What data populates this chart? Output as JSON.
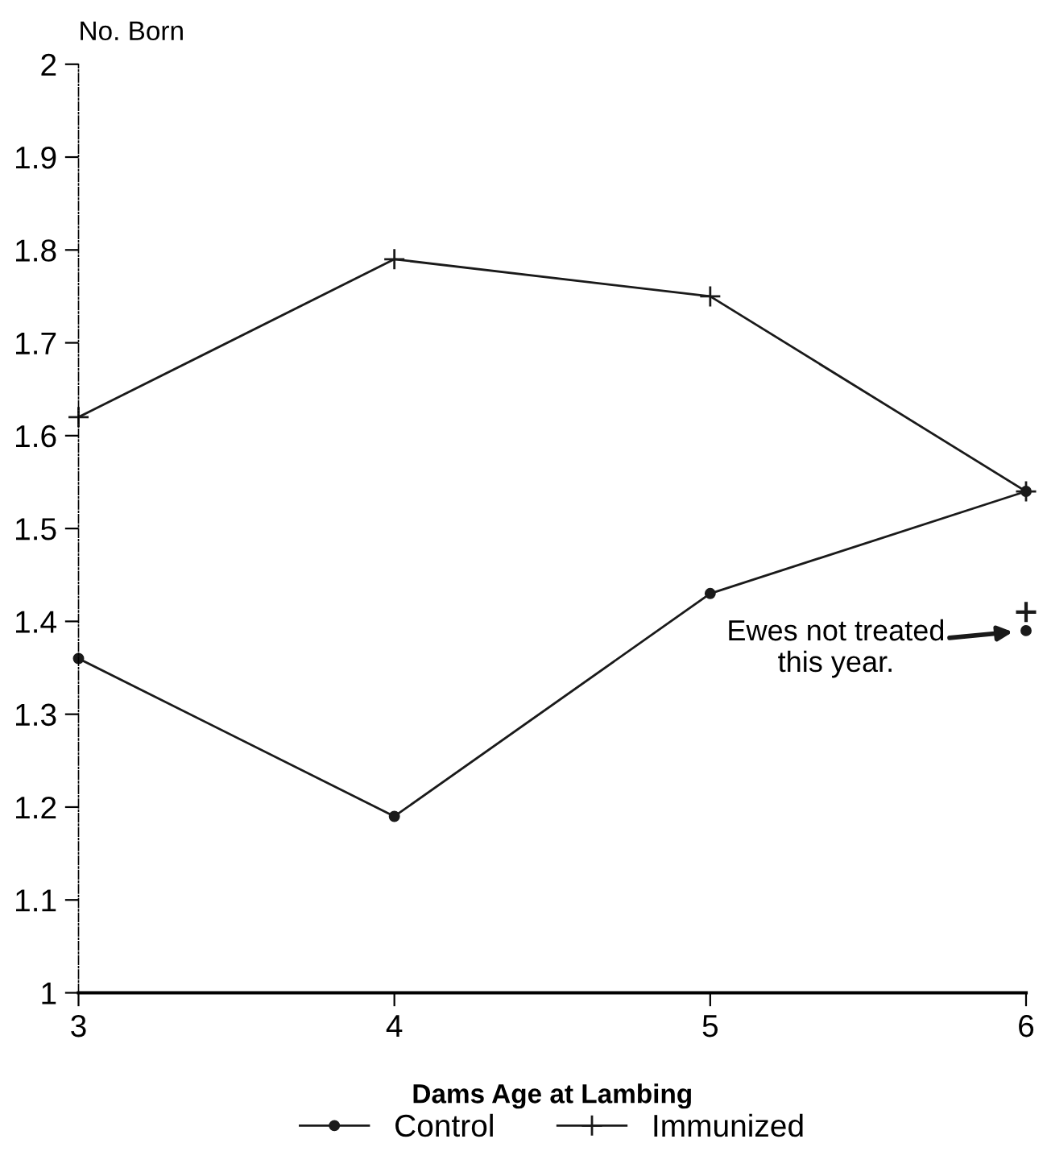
{
  "chart_data": {
    "type": "line",
    "xlabel": "Dams Age at Lambing",
    "ylabel": "No. Born",
    "x": [
      3,
      4,
      5,
      6
    ],
    "series": [
      {
        "name": "Control",
        "color": "#1a1a1a",
        "marker": "circle",
        "values": [
          1.36,
          1.19,
          1.43,
          1.54
        ]
      },
      {
        "name": "Immunized",
        "color": "#1a1a1a",
        "marker": "cross",
        "values": [
          1.62,
          1.79,
          1.75,
          1.54
        ]
      },
      {
        "type": "scatter",
        "color": "#1a1a1a",
        "marker": "cross",
        "x": [
          6
        ],
        "values": [
          1.41
        ]
      },
      {
        "type": "scatter",
        "color": "#1a1a1a",
        "marker": "circle",
        "x": [
          6
        ],
        "values": [
          1.39
        ]
      }
    ],
    "annotations": [
      {
        "text": "Ewes not treated\nthis year.",
        "x": 6,
        "y": 1.39
      }
    ],
    "xlim": [
      3,
      6
    ],
    "xticks": [
      3,
      4,
      5,
      6
    ],
    "ylim": [
      1,
      2
    ],
    "yticks": [
      1,
      1.1,
      1.2,
      1.3,
      1.4,
      1.5,
      1.6,
      1.7,
      1.8,
      1.9,
      2
    ],
    "line_style": "solid",
    "grid": false,
    "legend": "bottom"
  }
}
